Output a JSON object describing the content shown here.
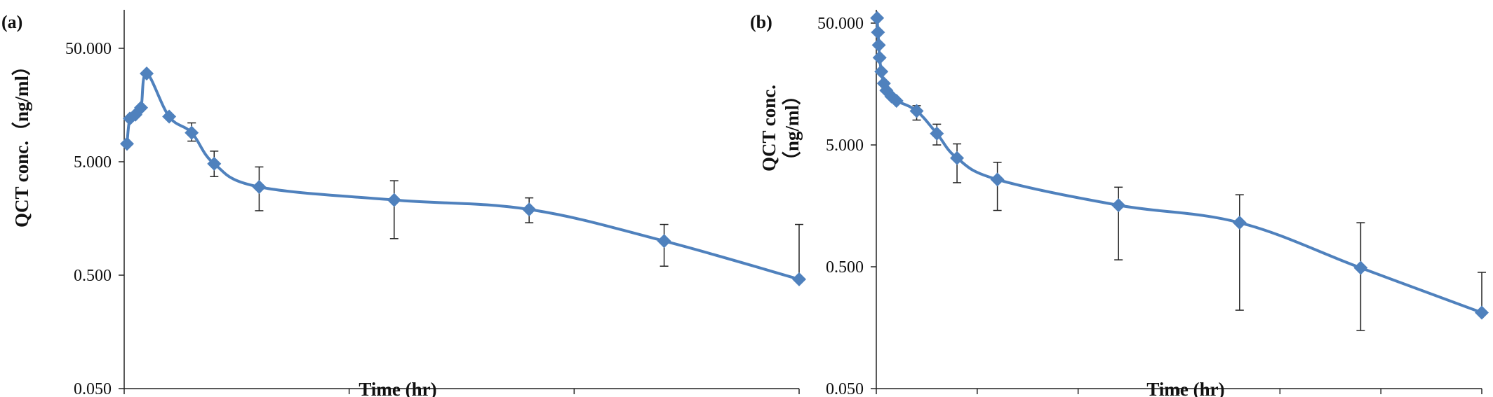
{
  "colors": {
    "series": "#4f81bd",
    "axis": "#222222",
    "error_bar": "#222222",
    "background": "#ffffff"
  },
  "chart_data": [
    {
      "type": "line",
      "panel_label": "(a)",
      "xlabel": "Time (hr)",
      "ylabel": "QCT conc.（ng/ml）",
      "xlim": [
        0,
        60
      ],
      "xticks": [
        0,
        20,
        40,
        60
      ],
      "ylim": [
        0.05,
        100
      ],
      "ylog": true,
      "yticks": [
        0.05,
        0.5,
        5,
        50
      ],
      "ytick_labels": [
        "0.050",
        "0.500",
        "5.000",
        "50.000"
      ],
      "grid": false,
      "legend": "none",
      "marker": "diamond",
      "smooth": true,
      "series": [
        {
          "x": [
            0.25,
            0.5,
            1,
            1.5,
            2,
            4,
            6,
            8,
            12,
            24,
            36,
            48,
            60
          ],
          "y": [
            7.2,
            12,
            13,
            15,
            30,
            12.5,
            9,
            4.8,
            3.0,
            2.3,
            1.9,
            1.0,
            0.46
          ],
          "err_high": [
            null,
            null,
            null,
            null,
            null,
            null,
            11,
            6.2,
            4.5,
            3.4,
            2.4,
            1.4,
            1.4
          ],
          "err_low": [
            null,
            null,
            null,
            null,
            null,
            null,
            7.6,
            3.7,
            1.85,
            1.05,
            1.45,
            0.6,
            null
          ]
        }
      ]
    },
    {
      "type": "line",
      "panel_label": "(b)",
      "xlabel": "Time (hr)",
      "ylabel_lines": [
        "QCT conc.",
        "（ng/ml）"
      ],
      "xlim": [
        0,
        60
      ],
      "xticks": [
        0,
        10,
        20,
        30,
        40,
        50,
        60
      ],
      "ylim": [
        0.05,
        60
      ],
      "ylog": true,
      "yticks": [
        0.05,
        0.5,
        5,
        50
      ],
      "ytick_labels": [
        "0.050",
        "0.500",
        "5.000",
        "50.000"
      ],
      "grid": false,
      "legend": "none",
      "marker": "diamond",
      "smooth": true,
      "series": [
        {
          "x": [
            0.083,
            0.167,
            0.25,
            0.33,
            0.5,
            0.75,
            1,
            1.5,
            2,
            4,
            6,
            8,
            12,
            24,
            36,
            48,
            60
          ],
          "y": [
            55,
            42,
            33,
            26,
            20,
            16,
            14,
            12.5,
            11.5,
            9.5,
            6.2,
            3.9,
            2.6,
            1.6,
            1.15,
            0.49,
            0.21
          ],
          "err_high": [
            null,
            null,
            null,
            null,
            null,
            null,
            null,
            null,
            null,
            10.5,
            7.4,
            5.1,
            3.6,
            2.25,
            1.95,
            1.15,
            0.45
          ],
          "err_low": [
            null,
            null,
            null,
            null,
            null,
            null,
            null,
            null,
            null,
            8.0,
            5.0,
            2.45,
            1.45,
            0.57,
            0.22,
            0.15,
            null
          ]
        }
      ]
    }
  ]
}
